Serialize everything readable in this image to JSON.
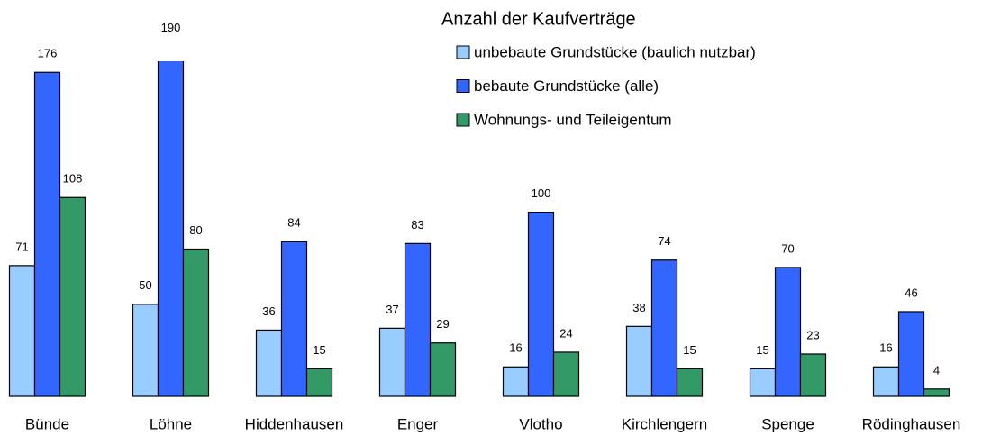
{
  "chart_data": {
    "type": "bar",
    "title": "Anzahl der Kaufverträge",
    "categories": [
      "Bünde",
      "Löhne",
      "Hiddenhausen",
      "Enger",
      "Vlotho",
      "Kirchlengern",
      "Spenge",
      "Rödinghausen"
    ],
    "series": [
      {
        "name": "unbebaute Grundstücke (baulich nutzbar)",
        "color": "#99ccff",
        "values": [
          71,
          50,
          36,
          37,
          16,
          38,
          15,
          16
        ]
      },
      {
        "name": "bebaute Grundstücke (alle)",
        "color": "#3366ff",
        "values": [
          176,
          190,
          84,
          83,
          100,
          74,
          70,
          46
        ]
      },
      {
        "name": "Wohnungs- und Teileigentum",
        "color": "#339966",
        "values": [
          108,
          80,
          15,
          29,
          24,
          15,
          23,
          4
        ]
      }
    ],
    "ylim": [
      0,
      182
    ]
  }
}
